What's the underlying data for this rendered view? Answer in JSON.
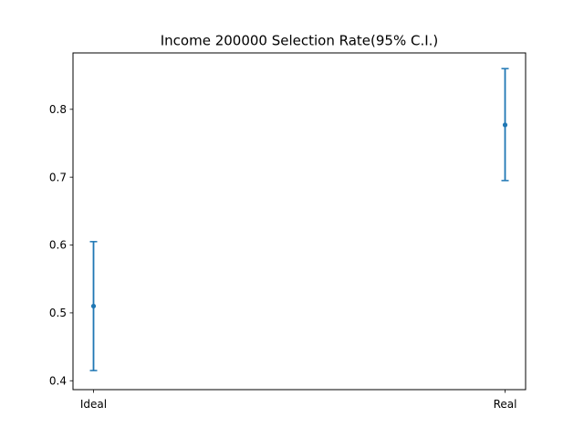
{
  "chart_data": {
    "type": "errorbar",
    "title": "Income 200000 Selection Rate(95% C.I.)",
    "xlabel": "",
    "ylabel": "",
    "categories": [
      "Ideal",
      "Real"
    ],
    "series": [
      {
        "values": [
          0.51,
          0.777
        ],
        "lower": [
          0.415,
          0.695
        ],
        "upper": [
          0.605,
          0.86
        ],
        "color": "#1f77b4"
      }
    ],
    "ylim": [
      0.3869,
      0.8831
    ],
    "yticks": [
      0.4,
      0.5,
      0.6,
      0.7,
      0.8
    ],
    "ytick_labels": [
      "0.4",
      "0.5",
      "0.6",
      "0.7",
      "0.8"
    ],
    "grid": false,
    "legend": "none"
  }
}
